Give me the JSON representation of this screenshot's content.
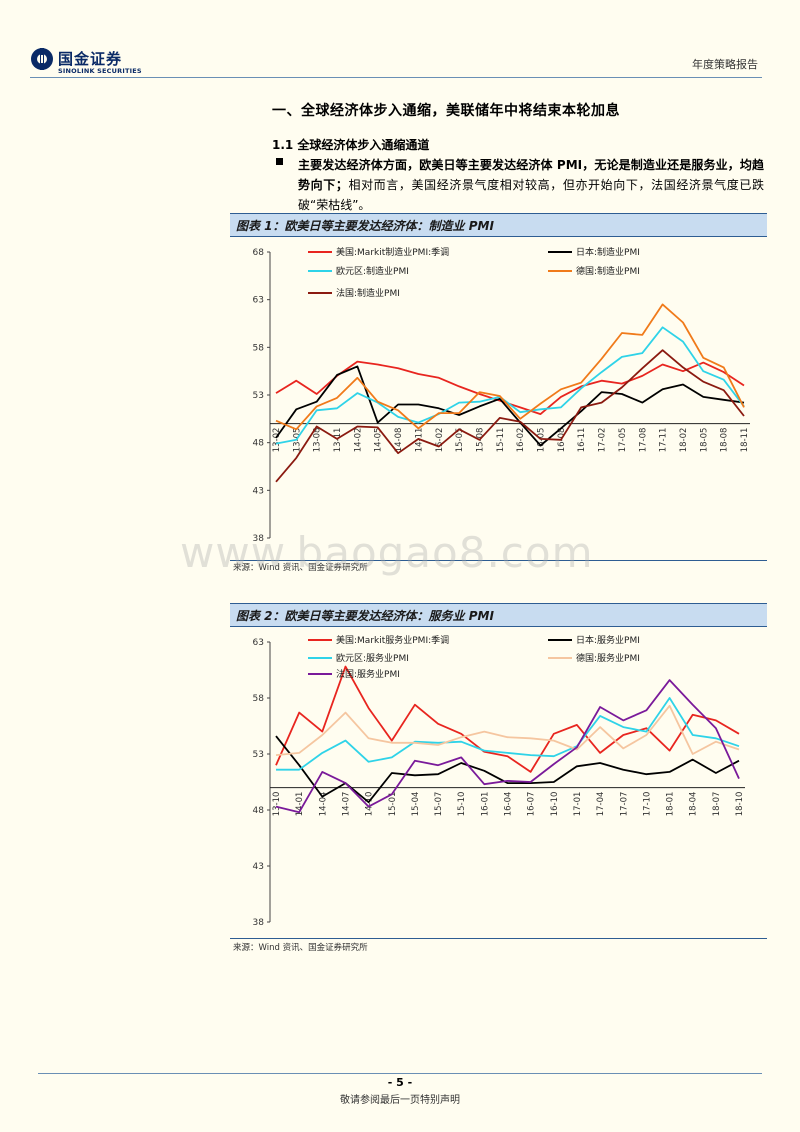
{
  "header": {
    "logo_cn": "国金证券",
    "logo_en": "SINOLINK SECURITIES",
    "report_type": "年度策略报告"
  },
  "section": {
    "title": "一、全球经济体步入通缩，美联储年中将结束本轮加息",
    "subtitle": "1.1 全球经济体步入通缩通道",
    "para_bold": "主要发达经济体方面，欧美日等主要发达经济体 PMI，无论是制造业还是服务业，均趋势向下；",
    "para_normal": "相对而言，美国经济景气度相对较高，但亦开始向下，法国经济景气度已跌破“荣枯线”。"
  },
  "figures": [
    {
      "title": "图表 1：欧美日等主要发达经济体：制造业 PMI",
      "source": "来源：Wind 资讯、国金证券研究所"
    },
    {
      "title": "图表 2：欧美日等主要发达经济体：服务业 PMI",
      "source": "来源：Wind 资讯、国金证券研究所"
    }
  ],
  "watermark": "www.baogao8.com",
  "footer": {
    "page_number": "- 5 -",
    "disclaimer": "敬请参阅最后一页特别声明"
  },
  "chart_data": [
    {
      "type": "line",
      "title": "欧美日等主要发达经济体：制造业 PMI",
      "ylim": [
        38,
        68
      ],
      "yticks": [
        38,
        43,
        48,
        53,
        58,
        63,
        68
      ],
      "reference_line": 50,
      "x": [
        "13-02",
        "13-05",
        "13-08",
        "13-11",
        "14-02",
        "14-05",
        "14-08",
        "14-11",
        "15-02",
        "15-05",
        "15-08",
        "15-11",
        "16-02",
        "16-05",
        "16-08",
        "16-11",
        "17-02",
        "17-05",
        "17-08",
        "17-11",
        "18-02",
        "18-05",
        "18-08",
        "18-11"
      ],
      "xticks": [
        "13-02",
        "13-05",
        "13-08",
        "13-11",
        "14-02",
        "14-05",
        "14-08",
        "14-11",
        "15-02",
        "15-05",
        "15-08",
        "15-11",
        "16-02",
        "16-05",
        "16-08",
        "16-11",
        "17-02",
        "17-05",
        "17-08",
        "17-11",
        "18-02",
        "18-05",
        "18-08",
        "18-11"
      ],
      "series": [
        {
          "name": "美国:Markit制造业PMI:季调",
          "color": "#e8251f",
          "values": [
            53.2,
            54.5,
            53.1,
            55.0,
            56.5,
            56.2,
            55.8,
            55.2,
            54.8,
            53.9,
            53.1,
            52.4,
            51.7,
            51.0,
            52.8,
            53.9,
            54.5,
            54.2,
            55.0,
            56.2,
            55.5,
            56.4,
            55.4,
            54.0
          ]
        },
        {
          "name": "日本:制造业PMI",
          "color": "#000000",
          "values": [
            48.5,
            51.5,
            52.3,
            55.1,
            56.0,
            50.1,
            52.0,
            52.0,
            51.6,
            50.9,
            51.8,
            52.6,
            50.1,
            47.7,
            49.5,
            51.3,
            53.3,
            53.1,
            52.2,
            53.6,
            54.1,
            52.8,
            52.5,
            52.2
          ]
        },
        {
          "name": "欧元区:制造业PMI",
          "color": "#2fd3e8",
          "values": [
            47.9,
            48.3,
            51.4,
            51.6,
            53.2,
            52.2,
            50.7,
            50.1,
            51.0,
            52.2,
            52.3,
            52.8,
            51.2,
            51.5,
            51.7,
            53.7,
            55.4,
            57.0,
            57.4,
            60.1,
            58.6,
            55.5,
            54.6,
            51.8
          ]
        },
        {
          "name": "德国:制造业PMI",
          "color": "#f07a1a",
          "values": [
            50.3,
            49.4,
            51.8,
            52.7,
            54.8,
            52.3,
            51.4,
            49.5,
            51.1,
            51.1,
            53.3,
            52.9,
            50.5,
            52.1,
            53.6,
            54.3,
            56.8,
            59.5,
            59.3,
            62.5,
            60.6,
            56.9,
            55.9,
            51.7
          ]
        },
        {
          "name": "法国:制造业PMI",
          "color": "#8b1a10",
          "values": [
            43.9,
            46.4,
            49.7,
            48.4,
            49.7,
            49.6,
            46.9,
            48.4,
            47.6,
            49.4,
            48.3,
            50.6,
            50.2,
            48.4,
            48.3,
            51.7,
            52.2,
            53.8,
            55.8,
            57.7,
            55.9,
            54.4,
            53.5,
            50.8
          ]
        }
      ]
    },
    {
      "type": "line",
      "title": "欧美日等主要发达经济体：服务业 PMI",
      "ylim": [
        38,
        63
      ],
      "yticks": [
        38,
        43,
        48,
        53,
        58,
        63
      ],
      "reference_line": 50,
      "x": [
        "13-10",
        "14-01",
        "14-04",
        "14-07",
        "14-10",
        "15-01",
        "15-04",
        "15-07",
        "15-10",
        "16-01",
        "16-04",
        "16-07",
        "16-10",
        "17-01",
        "17-04",
        "17-07",
        "17-10",
        "18-01",
        "18-04",
        "18-07",
        "18-10"
      ],
      "xticks": [
        "13-10",
        "14-01",
        "14-04",
        "14-07",
        "14-10",
        "15-01",
        "15-04",
        "15-07",
        "15-10",
        "16-01",
        "16-04",
        "16-07",
        "16-10",
        "17-01",
        "17-04",
        "17-07",
        "17-10",
        "18-01",
        "18-04",
        "18-07",
        "18-10"
      ],
      "series": [
        {
          "name": "美国:Markit服务业PMI:季调",
          "color": "#e8251f",
          "values": [
            52.0,
            56.7,
            55.0,
            60.8,
            57.1,
            54.2,
            57.4,
            55.7,
            54.8,
            53.2,
            52.8,
            51.4,
            54.8,
            55.6,
            53.1,
            54.7,
            55.3,
            53.3,
            56.5,
            56.0,
            54.8
          ]
        },
        {
          "name": "日本:服务业PMI",
          "color": "#000000",
          "values": [
            54.6,
            52.0,
            49.2,
            50.4,
            48.7,
            51.3,
            51.1,
            51.2,
            52.2,
            51.5,
            50.4,
            50.4,
            50.5,
            51.9,
            52.2,
            51.6,
            51.2,
            51.4,
            52.5,
            51.3,
            52.4
          ]
        },
        {
          "name": "欧元区:服务业PMI",
          "color": "#2fd3e8",
          "values": [
            51.6,
            51.6,
            53.1,
            54.2,
            52.3,
            52.7,
            54.1,
            54.0,
            54.1,
            53.3,
            53.1,
            52.9,
            52.8,
            53.7,
            56.4,
            55.4,
            55.0,
            58.0,
            54.7,
            54.4,
            53.7
          ]
        },
        {
          "name": "德国:服务业PMI",
          "color": "#f5c6a0",
          "values": [
            52.9,
            53.1,
            54.7,
            56.7,
            54.4,
            54.0,
            54.0,
            53.8,
            54.5,
            55.0,
            54.5,
            54.4,
            54.2,
            53.4,
            55.4,
            53.5,
            54.7,
            57.3,
            53.0,
            54.1,
            53.4
          ]
        },
        {
          "name": "法国:服务业PMI",
          "color": "#7a1a9a",
          "values": [
            48.3,
            47.8,
            51.4,
            50.4,
            48.3,
            49.4,
            52.4,
            52.0,
            52.7,
            50.3,
            50.6,
            50.5,
            52.1,
            53.6,
            57.2,
            56.0,
            56.9,
            59.6,
            57.4,
            55.3,
            50.8
          ]
        }
      ]
    }
  ]
}
